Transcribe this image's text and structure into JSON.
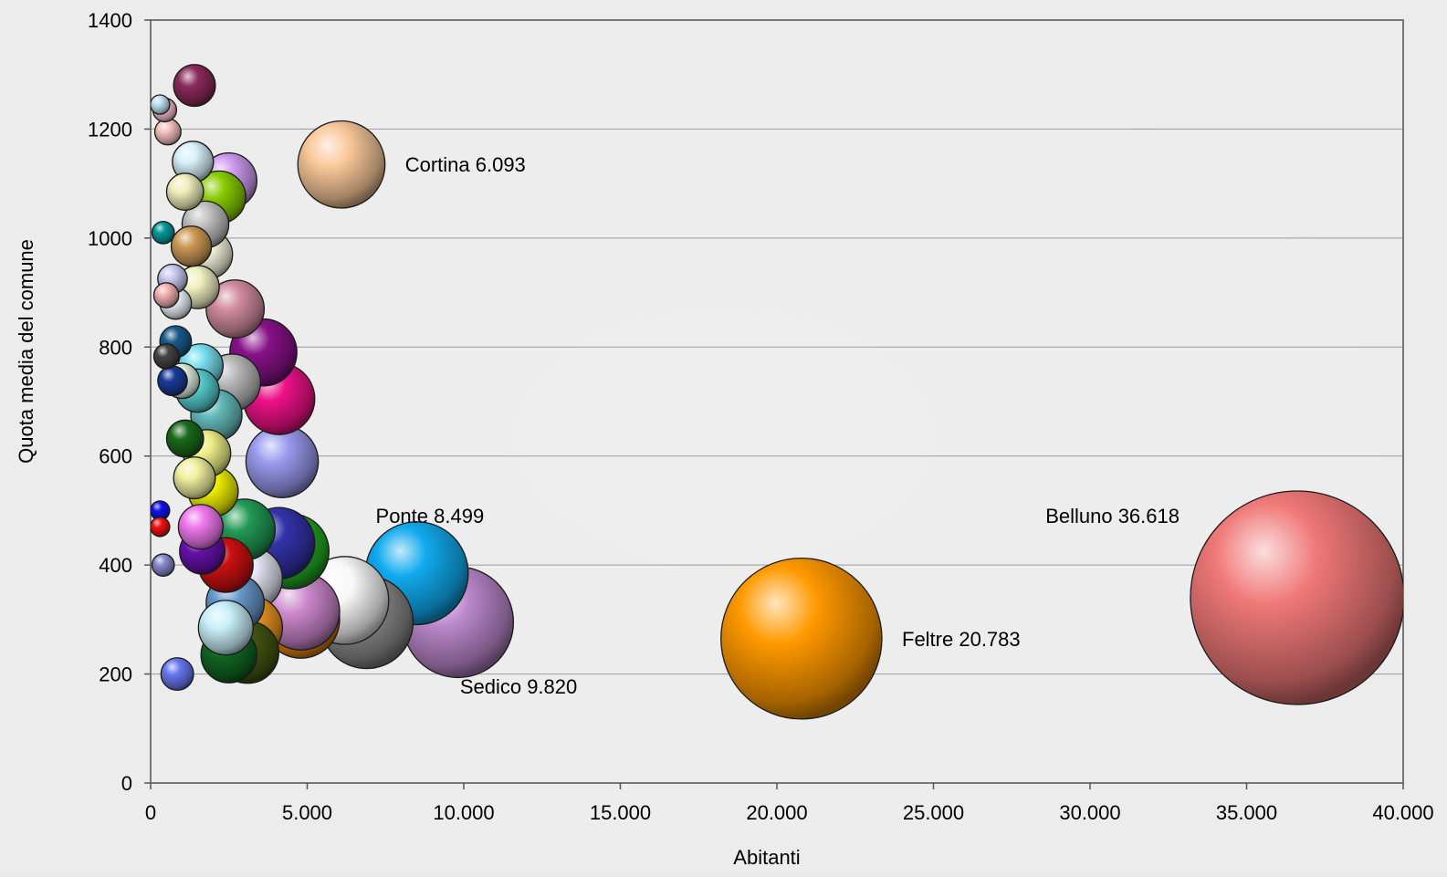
{
  "chart_data": {
    "type": "bubble",
    "xlabel": "Abitanti",
    "ylabel": "Quota media del comune",
    "xlim": [
      0,
      40000
    ],
    "ylim": [
      0,
      1400
    ],
    "xticks": [
      0,
      5000,
      10000,
      15000,
      20000,
      25000,
      30000,
      35000,
      40000
    ],
    "xtick_labels": [
      "0",
      "5.000",
      "10.000",
      "15.000",
      "20.000",
      "25.000",
      "30.000",
      "35.000",
      "40.000"
    ],
    "yticks": [
      0,
      200,
      400,
      600,
      800,
      1000,
      1200,
      1400
    ],
    "ytick_labels": [
      "0",
      "200",
      "400",
      "600",
      "800",
      "1000",
      "1200",
      "1400"
    ],
    "grid": "horizontal",
    "points": [
      {
        "x": 1400,
        "y": 1280,
        "color": "#8b2a5a"
      },
      {
        "x": 300,
        "y": 1245,
        "color": "#bfe0f0"
      },
      {
        "x": 450,
        "y": 1235,
        "color": "#f0b8c8"
      },
      {
        "x": 550,
        "y": 1195,
        "color": "#f5c0c0"
      },
      {
        "x": 6093,
        "y": 1135,
        "color": "#f9c89a",
        "label": "Cortina 6.093"
      },
      {
        "x": 1350,
        "y": 1140,
        "color": "#d8f0f8"
      },
      {
        "x": 2500,
        "y": 1105,
        "color": "#cc99ee"
      },
      {
        "x": 2200,
        "y": 1075,
        "color": "#88cc00"
      },
      {
        "x": 1100,
        "y": 1085,
        "color": "#eeeebb"
      },
      {
        "x": 1750,
        "y": 1025,
        "color": "#c0c0c0"
      },
      {
        "x": 400,
        "y": 1010,
        "color": "#009999"
      },
      {
        "x": 1300,
        "y": 985,
        "color": "#cc9955"
      },
      {
        "x": 1850,
        "y": 970,
        "color": "#f5f5dd"
      },
      {
        "x": 700,
        "y": 925,
        "color": "#c8c8f0"
      },
      {
        "x": 1500,
        "y": 910,
        "color": "#f0f0c0"
      },
      {
        "x": 500,
        "y": 895,
        "color": "#f0b0b0"
      },
      {
        "x": 800,
        "y": 880,
        "color": "#e8f0f8"
      },
      {
        "x": 2700,
        "y": 870,
        "color": "#d08aa0"
      },
      {
        "x": 800,
        "y": 810,
        "color": "#1a5a8a"
      },
      {
        "x": 3600,
        "y": 790,
        "color": "#881188"
      },
      {
        "x": 500,
        "y": 783,
        "color": "#444444"
      },
      {
        "x": 1600,
        "y": 765,
        "color": "#77ddee"
      },
      {
        "x": 2600,
        "y": 735,
        "color": "#b8b8b8"
      },
      {
        "x": 700,
        "y": 738,
        "color": "#1a3a9a"
      },
      {
        "x": 1000,
        "y": 738,
        "color": "#e0f0e0"
      },
      {
        "x": 1500,
        "y": 720,
        "color": "#55cccc"
      },
      {
        "x": 4100,
        "y": 705,
        "color": "#ee1188"
      },
      {
        "x": 2100,
        "y": 675,
        "color": "#66bbbb"
      },
      {
        "x": 1100,
        "y": 632,
        "color": "#1a6a1a"
      },
      {
        "x": 1800,
        "y": 605,
        "color": "#eeee88"
      },
      {
        "x": 4200,
        "y": 590,
        "color": "#9999ee"
      },
      {
        "x": 1400,
        "y": 560,
        "color": "#f0f0a0"
      },
      {
        "x": 2000,
        "y": 535,
        "color": "#eeee00"
      },
      {
        "x": 8499,
        "y": 385,
        "color": "#11aaee",
        "label": "Ponte 8.499"
      },
      {
        "x": 36618,
        "y": 340,
        "color": "#f07878",
        "label": "Belluno 36.618"
      },
      {
        "x": 300,
        "y": 500,
        "color": "#1111ee"
      },
      {
        "x": 300,
        "y": 470,
        "color": "#ee1111"
      },
      {
        "x": 3000,
        "y": 465,
        "color": "#229955"
      },
      {
        "x": 1600,
        "y": 470,
        "color": "#ee77ee"
      },
      {
        "x": 4100,
        "y": 440,
        "color": "#3333aa"
      },
      {
        "x": 4500,
        "y": 425,
        "color": "#22aa22"
      },
      {
        "x": 1650,
        "y": 425,
        "color": "#6611aa"
      },
      {
        "x": 2400,
        "y": 400,
        "color": "#cc1111"
      },
      {
        "x": 400,
        "y": 400,
        "color": "#8888cc"
      },
      {
        "x": 3200,
        "y": 375,
        "color": "#e8e8f8"
      },
      {
        "x": 6200,
        "y": 335,
        "color": "#f8f8f8"
      },
      {
        "x": 2700,
        "y": 330,
        "color": "#6699cc"
      },
      {
        "x": 4800,
        "y": 300,
        "color": "#ee8811"
      },
      {
        "x": 6900,
        "y": 295,
        "color": "#888888"
      },
      {
        "x": 9820,
        "y": 295,
        "color": "#bb88cc",
        "label": "Sedico 9.820"
      },
      {
        "x": 4800,
        "y": 315,
        "color": "#cc88cc"
      },
      {
        "x": 2400,
        "y": 285,
        "color": "#c8eef8"
      },
      {
        "x": 3200,
        "y": 285,
        "color": "#ee9922"
      },
      {
        "x": 20783,
        "y": 265,
        "color": "#ff9900",
        "label": "Feltre 20.783"
      },
      {
        "x": 3100,
        "y": 240,
        "color": "#445511"
      },
      {
        "x": 2500,
        "y": 235,
        "color": "#116622"
      },
      {
        "x": 850,
        "y": 200,
        "color": "#6677ee"
      }
    ]
  }
}
